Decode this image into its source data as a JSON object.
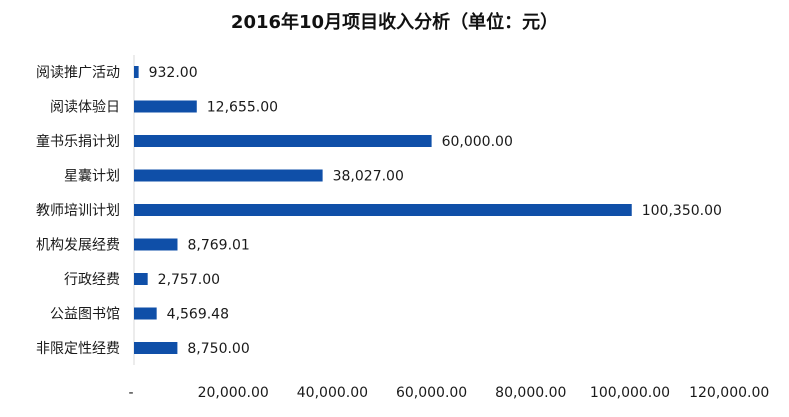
{
  "chart_data": {
    "type": "bar",
    "orientation": "horizontal",
    "title": "2016年10月项目收入分析（单位：元）",
    "categories": [
      "阅读推广活动",
      "阅读体验日",
      "童书乐捐计划",
      "星囊计划",
      "教师培训计划",
      "机构发展经费",
      "行政经费",
      "公益图书馆",
      "非限定性经费"
    ],
    "values": [
      932.0,
      12655.0,
      60000.0,
      38027.0,
      100350.0,
      8769.01,
      2757.0,
      4569.48,
      8750.0
    ],
    "value_labels": [
      "932.00",
      "12,655.00",
      "60,000.00",
      "38,027.00",
      "100,350.00",
      "8,769.01",
      "2,757.00",
      "4,569.48",
      "8,750.00"
    ],
    "xlim": [
      0,
      120000
    ],
    "xticks": [
      0,
      20000,
      40000,
      60000,
      80000,
      100000,
      120000
    ],
    "xtick_labels": [
      "-",
      "20,000.00",
      "40,000.00",
      "60,000.00",
      "80,000.00",
      "100,000.00",
      "120,000.00"
    ],
    "grid": false,
    "legend": "none",
    "bar_color": "#0F4FA8"
  }
}
